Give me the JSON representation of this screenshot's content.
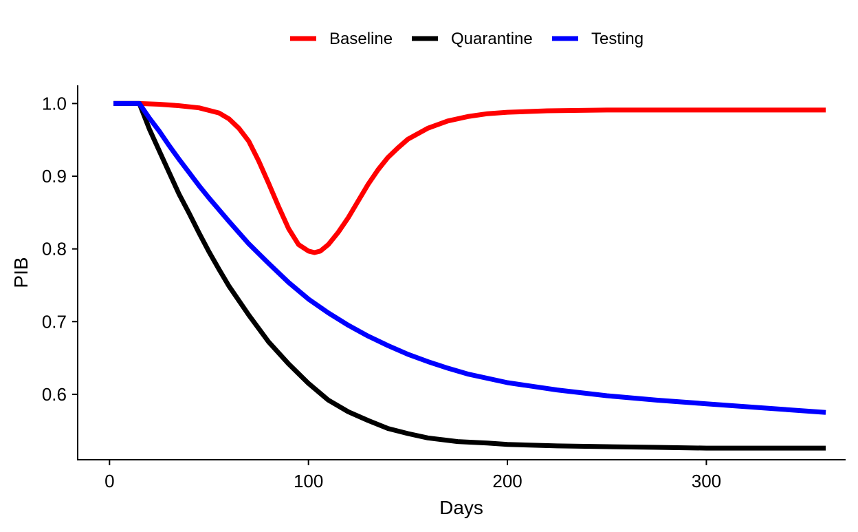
{
  "chart_data": {
    "type": "line",
    "title": "",
    "xlabel": "Days",
    "ylabel": "PIB",
    "xlim": [
      -16,
      370
    ],
    "ylim": [
      0.51,
      1.025
    ],
    "xticks": [
      0,
      100,
      200,
      300
    ],
    "yticks": [
      0.6,
      0.7,
      0.8,
      0.9,
      1.0
    ],
    "xtick_labels": [
      "0",
      "100",
      "200",
      "300"
    ],
    "ytick_labels": [
      "0.6",
      "0.7",
      "0.8",
      "0.9",
      "1.0"
    ],
    "grid": false,
    "legend_position": "top",
    "series": [
      {
        "name": "Baseline",
        "color": "#ff0000",
        "x": [
          2,
          15,
          25,
          35,
          45,
          55,
          60,
          65,
          70,
          75,
          80,
          85,
          90,
          95,
          100,
          103,
          106,
          110,
          115,
          120,
          125,
          130,
          135,
          140,
          145,
          150,
          160,
          170,
          180,
          190,
          200,
          220,
          250,
          300,
          360
        ],
        "y": [
          1.0,
          1.0,
          0.999,
          0.997,
          0.994,
          0.987,
          0.979,
          0.966,
          0.948,
          0.921,
          0.89,
          0.858,
          0.828,
          0.806,
          0.797,
          0.795,
          0.797,
          0.806,
          0.823,
          0.843,
          0.866,
          0.889,
          0.909,
          0.926,
          0.939,
          0.951,
          0.966,
          0.976,
          0.982,
          0.986,
          0.988,
          0.99,
          0.991,
          0.991,
          0.991
        ]
      },
      {
        "name": "Quarantine",
        "color": "#000000",
        "x": [
          2,
          15,
          20,
          25,
          30,
          35,
          40,
          45,
          50,
          55,
          60,
          70,
          80,
          90,
          100,
          110,
          120,
          130,
          140,
          150,
          160,
          175,
          190,
          200,
          225,
          250,
          275,
          300,
          330,
          360
        ],
        "y": [
          1.0,
          1.0,
          0.965,
          0.935,
          0.905,
          0.875,
          0.849,
          0.822,
          0.796,
          0.772,
          0.749,
          0.709,
          0.672,
          0.642,
          0.615,
          0.592,
          0.576,
          0.564,
          0.553,
          0.546,
          0.54,
          0.535,
          0.533,
          0.531,
          0.529,
          0.528,
          0.527,
          0.526,
          0.526,
          0.526
        ]
      },
      {
        "name": "Testing",
        "color": "#0000ff",
        "x": [
          2,
          15,
          20,
          25,
          30,
          35,
          40,
          45,
          50,
          60,
          70,
          80,
          90,
          100,
          110,
          120,
          130,
          140,
          150,
          160,
          170,
          180,
          200,
          225,
          250,
          275,
          300,
          330,
          360
        ],
        "y": [
          1.0,
          1.0,
          0.98,
          0.962,
          0.942,
          0.923,
          0.905,
          0.887,
          0.87,
          0.838,
          0.807,
          0.78,
          0.754,
          0.731,
          0.712,
          0.695,
          0.68,
          0.667,
          0.655,
          0.645,
          0.636,
          0.628,
          0.616,
          0.606,
          0.598,
          0.592,
          0.587,
          0.581,
          0.575
        ]
      }
    ]
  }
}
